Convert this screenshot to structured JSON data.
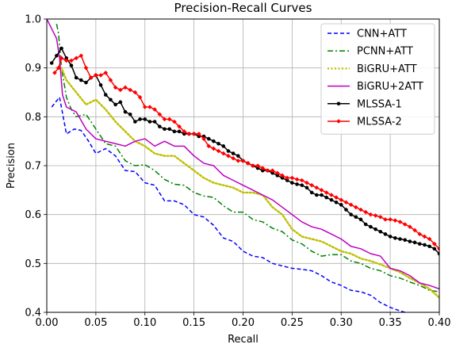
{
  "chart_data": {
    "type": "line",
    "title": "Precision-Recall Curves",
    "xlabel": "Recall",
    "ylabel": "Precision",
    "xlim": [
      0.0,
      0.4
    ],
    "ylim": [
      0.4,
      1.0
    ],
    "xticks": [
      0.0,
      0.05,
      0.1,
      0.15,
      0.2,
      0.25,
      0.3,
      0.35,
      0.4
    ],
    "xtick_labels": [
      "0.00",
      "0.05",
      "0.10",
      "0.15",
      "0.20",
      "0.25",
      "0.30",
      "0.35",
      "0.40"
    ],
    "yticks": [
      0.4,
      0.5,
      0.6,
      0.7,
      0.8,
      0.9,
      1.0
    ],
    "ytick_labels": [
      "0.4",
      "0.5",
      "0.6",
      "0.7",
      "0.8",
      "0.9",
      "1.0"
    ],
    "grid": true,
    "legend_position": "top-right",
    "series": [
      {
        "name": "CNN+ATT",
        "color": "#0000ff",
        "dash": "dashed",
        "marker": "none",
        "x": [
          0.005,
          0.013,
          0.02,
          0.028,
          0.035,
          0.042,
          0.05,
          0.06,
          0.07,
          0.08,
          0.09,
          0.1,
          0.11,
          0.12,
          0.13,
          0.14,
          0.15,
          0.16,
          0.17,
          0.18,
          0.19,
          0.2,
          0.21,
          0.22,
          0.23,
          0.24,
          0.25,
          0.26,
          0.27,
          0.28,
          0.29,
          0.3,
          0.31,
          0.32,
          0.33,
          0.34,
          0.35,
          0.36,
          0.365
        ],
        "y": [
          0.82,
          0.84,
          0.765,
          0.775,
          0.772,
          0.752,
          0.725,
          0.735,
          0.72,
          0.69,
          0.688,
          0.665,
          0.66,
          0.628,
          0.628,
          0.62,
          0.6,
          0.595,
          0.578,
          0.552,
          0.545,
          0.525,
          0.515,
          0.512,
          0.5,
          0.495,
          0.49,
          0.488,
          0.485,
          0.475,
          0.462,
          0.455,
          0.445,
          0.442,
          0.435,
          0.42,
          0.41,
          0.403,
          0.4
        ]
      },
      {
        "name": "PCNN+ATT",
        "color": "#008000",
        "dash": "dashdot",
        "marker": "none",
        "x": [
          0.01,
          0.012,
          0.015,
          0.02,
          0.025,
          0.03,
          0.04,
          0.05,
          0.06,
          0.07,
          0.08,
          0.09,
          0.1,
          0.11,
          0.12,
          0.13,
          0.14,
          0.15,
          0.16,
          0.17,
          0.18,
          0.19,
          0.2,
          0.21,
          0.22,
          0.23,
          0.24,
          0.25,
          0.26,
          0.27,
          0.28,
          0.29,
          0.3,
          0.31,
          0.32,
          0.33,
          0.34,
          0.35,
          0.36,
          0.37,
          0.38,
          0.39,
          0.4
        ],
        "y": [
          0.99,
          0.97,
          0.9,
          0.84,
          0.815,
          0.8,
          0.805,
          0.775,
          0.745,
          0.74,
          0.71,
          0.7,
          0.702,
          0.69,
          0.672,
          0.662,
          0.66,
          0.645,
          0.638,
          0.635,
          0.618,
          0.605,
          0.605,
          0.59,
          0.585,
          0.572,
          0.565,
          0.548,
          0.54,
          0.525,
          0.515,
          0.518,
          0.518,
          0.505,
          0.5,
          0.49,
          0.485,
          0.475,
          0.47,
          0.462,
          0.455,
          0.445,
          0.442
        ]
      },
      {
        "name": "BiGRU+ATT",
        "color": "#bfbf00",
        "dash": "dotted",
        "marker": "none",
        "x": [
          0.01,
          0.015,
          0.02,
          0.03,
          0.04,
          0.05,
          0.06,
          0.07,
          0.08,
          0.09,
          0.1,
          0.11,
          0.12,
          0.13,
          0.14,
          0.15,
          0.16,
          0.17,
          0.18,
          0.19,
          0.2,
          0.21,
          0.22,
          0.23,
          0.24,
          0.25,
          0.26,
          0.27,
          0.28,
          0.29,
          0.3,
          0.31,
          0.32,
          0.33,
          0.34,
          0.35,
          0.36,
          0.37,
          0.38,
          0.39,
          0.4
        ],
        "y": [
          0.9,
          0.9,
          0.875,
          0.85,
          0.825,
          0.835,
          0.815,
          0.79,
          0.77,
          0.75,
          0.74,
          0.725,
          0.72,
          0.72,
          0.705,
          0.69,
          0.675,
          0.665,
          0.66,
          0.655,
          0.645,
          0.645,
          0.64,
          0.615,
          0.6,
          0.57,
          0.555,
          0.55,
          0.545,
          0.535,
          0.525,
          0.52,
          0.51,
          0.505,
          0.498,
          0.49,
          0.482,
          0.47,
          0.46,
          0.448,
          0.43
        ]
      },
      {
        "name": "BiGRU+2ATT",
        "color": "#bf00bf",
        "dash": "solid",
        "marker": "none",
        "x": [
          0.0,
          0.005,
          0.01,
          0.013,
          0.016,
          0.02,
          0.03,
          0.04,
          0.05,
          0.06,
          0.07,
          0.08,
          0.09,
          0.1,
          0.11,
          0.12,
          0.13,
          0.14,
          0.15,
          0.16,
          0.17,
          0.18,
          0.19,
          0.2,
          0.21,
          0.22,
          0.23,
          0.24,
          0.25,
          0.26,
          0.27,
          0.28,
          0.29,
          0.3,
          0.31,
          0.32,
          0.33,
          0.34,
          0.35,
          0.36,
          0.37,
          0.38,
          0.39,
          0.4
        ],
        "y": [
          1.0,
          0.98,
          0.96,
          0.92,
          0.845,
          0.82,
          0.81,
          0.775,
          0.755,
          0.75,
          0.745,
          0.74,
          0.75,
          0.755,
          0.74,
          0.75,
          0.74,
          0.74,
          0.72,
          0.705,
          0.7,
          0.68,
          0.67,
          0.66,
          0.65,
          0.64,
          0.63,
          0.615,
          0.6,
          0.585,
          0.575,
          0.57,
          0.56,
          0.55,
          0.535,
          0.53,
          0.52,
          0.515,
          0.49,
          0.485,
          0.475,
          0.46,
          0.455,
          0.448
        ]
      },
      {
        "name": "MLSSA-1",
        "color": "#000000",
        "dash": "solid",
        "marker": "circle",
        "x": [
          0.005,
          0.01,
          0.015,
          0.02,
          0.025,
          0.03,
          0.035,
          0.04,
          0.045,
          0.05,
          0.055,
          0.06,
          0.065,
          0.07,
          0.075,
          0.08,
          0.085,
          0.09,
          0.095,
          0.1,
          0.105,
          0.11,
          0.115,
          0.12,
          0.125,
          0.13,
          0.135,
          0.14,
          0.145,
          0.15,
          0.155,
          0.16,
          0.165,
          0.17,
          0.175,
          0.18,
          0.185,
          0.19,
          0.195,
          0.2,
          0.205,
          0.21,
          0.215,
          0.22,
          0.225,
          0.23,
          0.235,
          0.24,
          0.245,
          0.25,
          0.255,
          0.26,
          0.265,
          0.27,
          0.275,
          0.28,
          0.285,
          0.29,
          0.295,
          0.3,
          0.305,
          0.31,
          0.315,
          0.32,
          0.325,
          0.33,
          0.335,
          0.34,
          0.345,
          0.35,
          0.355,
          0.36,
          0.365,
          0.37,
          0.375,
          0.38,
          0.385,
          0.39,
          0.395,
          0.4
        ],
        "y": [
          0.91,
          0.925,
          0.94,
          0.92,
          0.905,
          0.88,
          0.875,
          0.87,
          0.88,
          0.885,
          0.865,
          0.845,
          0.835,
          0.825,
          0.83,
          0.81,
          0.805,
          0.79,
          0.795,
          0.795,
          0.79,
          0.79,
          0.78,
          0.775,
          0.775,
          0.77,
          0.77,
          0.765,
          0.765,
          0.765,
          0.76,
          0.76,
          0.755,
          0.75,
          0.745,
          0.74,
          0.73,
          0.725,
          0.72,
          0.71,
          0.705,
          0.7,
          0.695,
          0.69,
          0.69,
          0.685,
          0.68,
          0.675,
          0.67,
          0.665,
          0.662,
          0.66,
          0.655,
          0.645,
          0.64,
          0.64,
          0.635,
          0.63,
          0.625,
          0.62,
          0.61,
          0.6,
          0.595,
          0.59,
          0.58,
          0.575,
          0.57,
          0.565,
          0.56,
          0.555,
          0.552,
          0.55,
          0.548,
          0.545,
          0.543,
          0.54,
          0.538,
          0.535,
          0.53,
          0.52
        ]
      },
      {
        "name": "MLSSA-2",
        "color": "#ff0000",
        "dash": "solid",
        "marker": "diamond",
        "x": [
          0.008,
          0.012,
          0.015,
          0.02,
          0.025,
          0.03,
          0.035,
          0.04,
          0.045,
          0.05,
          0.055,
          0.06,
          0.065,
          0.07,
          0.075,
          0.08,
          0.085,
          0.09,
          0.095,
          0.1,
          0.105,
          0.11,
          0.115,
          0.12,
          0.125,
          0.13,
          0.135,
          0.14,
          0.145,
          0.15,
          0.155,
          0.16,
          0.165,
          0.17,
          0.175,
          0.18,
          0.185,
          0.19,
          0.195,
          0.2,
          0.205,
          0.21,
          0.215,
          0.22,
          0.225,
          0.23,
          0.235,
          0.24,
          0.245,
          0.25,
          0.255,
          0.26,
          0.265,
          0.27,
          0.275,
          0.28,
          0.285,
          0.29,
          0.295,
          0.3,
          0.305,
          0.31,
          0.315,
          0.32,
          0.325,
          0.33,
          0.335,
          0.34,
          0.345,
          0.35,
          0.355,
          0.36,
          0.365,
          0.37,
          0.375,
          0.38,
          0.385,
          0.39,
          0.395,
          0.4
        ],
        "y": [
          0.89,
          0.9,
          0.92,
          0.915,
          0.915,
          0.92,
          0.925,
          0.9,
          0.88,
          0.885,
          0.885,
          0.89,
          0.875,
          0.86,
          0.855,
          0.86,
          0.855,
          0.85,
          0.84,
          0.82,
          0.82,
          0.815,
          0.805,
          0.795,
          0.795,
          0.79,
          0.78,
          0.77,
          0.765,
          0.765,
          0.765,
          0.755,
          0.74,
          0.735,
          0.73,
          0.725,
          0.72,
          0.715,
          0.71,
          0.71,
          0.705,
          0.7,
          0.7,
          0.695,
          0.69,
          0.69,
          0.685,
          0.68,
          0.675,
          0.675,
          0.672,
          0.67,
          0.665,
          0.66,
          0.655,
          0.65,
          0.645,
          0.64,
          0.635,
          0.63,
          0.625,
          0.62,
          0.615,
          0.61,
          0.605,
          0.6,
          0.598,
          0.595,
          0.59,
          0.59,
          0.588,
          0.585,
          0.58,
          0.575,
          0.568,
          0.56,
          0.555,
          0.55,
          0.54,
          0.53
        ]
      }
    ]
  }
}
